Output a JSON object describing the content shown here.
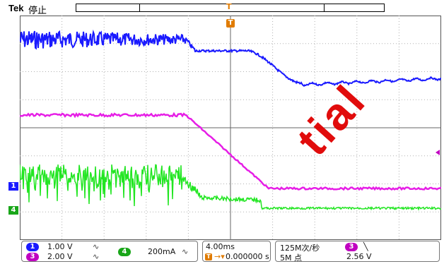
{
  "title": {
    "brand": "Tek",
    "status": "停止"
  },
  "trigger": {
    "top_marker": "T",
    "box_marker": "T"
  },
  "ref_markers": {
    "ch1": "1",
    "ch4": "4"
  },
  "channels": [
    {
      "id": "1",
      "scale": "1.00 V",
      "coupling_icon": "∿",
      "color": "#1a1aff"
    },
    {
      "id": "3",
      "scale": "2.00 V",
      "coupling_icon": "∿",
      "color": "#c000c0"
    },
    {
      "id": "4",
      "scale": "200mA",
      "coupling_icon": "∿",
      "color": "#19a619"
    }
  ],
  "timebase": {
    "horizontal": "4.00ms",
    "trigger_pos": "0.000000 s",
    "sample_rate": "125M次/秒",
    "record_length": "5M 点"
  },
  "trigger_info": {
    "source": "3",
    "slope_icon": "╲",
    "level": "2.56 V"
  },
  "watermark": "tial",
  "colors": {
    "ch1": "#1a1aff",
    "ch3": "#e61ee6",
    "ch4": "#22e622",
    "grid": "#b0b0b0",
    "trigger": "#e07b00"
  }
}
